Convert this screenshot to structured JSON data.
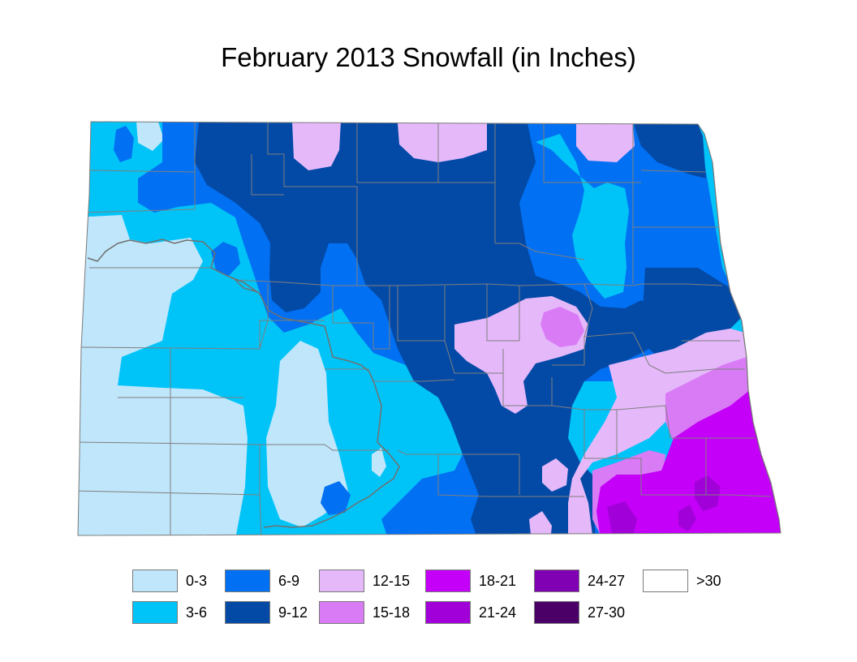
{
  "title": "February 2013 Snowfall (in Inches)",
  "legend": [
    {
      "label": "0-3",
      "color": "#bfe6fb"
    },
    {
      "label": "3-6",
      "color": "#00c4f8"
    },
    {
      "label": "6-9",
      "color": "#0270f2"
    },
    {
      "label": "9-12",
      "color": "#034aa6"
    },
    {
      "label": "12-15",
      "color": "#e5b8fa"
    },
    {
      "label": "15-18",
      "color": "#d97bf5"
    },
    {
      "label": "18-21",
      "color": "#c400f8"
    },
    {
      "label": "21-24",
      "color": "#a200d9"
    },
    {
      "label": "24-27",
      "color": "#8000b3"
    },
    {
      "label": "27-30",
      "color": "#4a0066"
    },
    {
      "label": ">30",
      "color": "#ffffff"
    }
  ],
  "colors": {
    "county_lines": "#7f7f7f",
    "rivers": "#707070",
    "title": "#000000"
  }
}
